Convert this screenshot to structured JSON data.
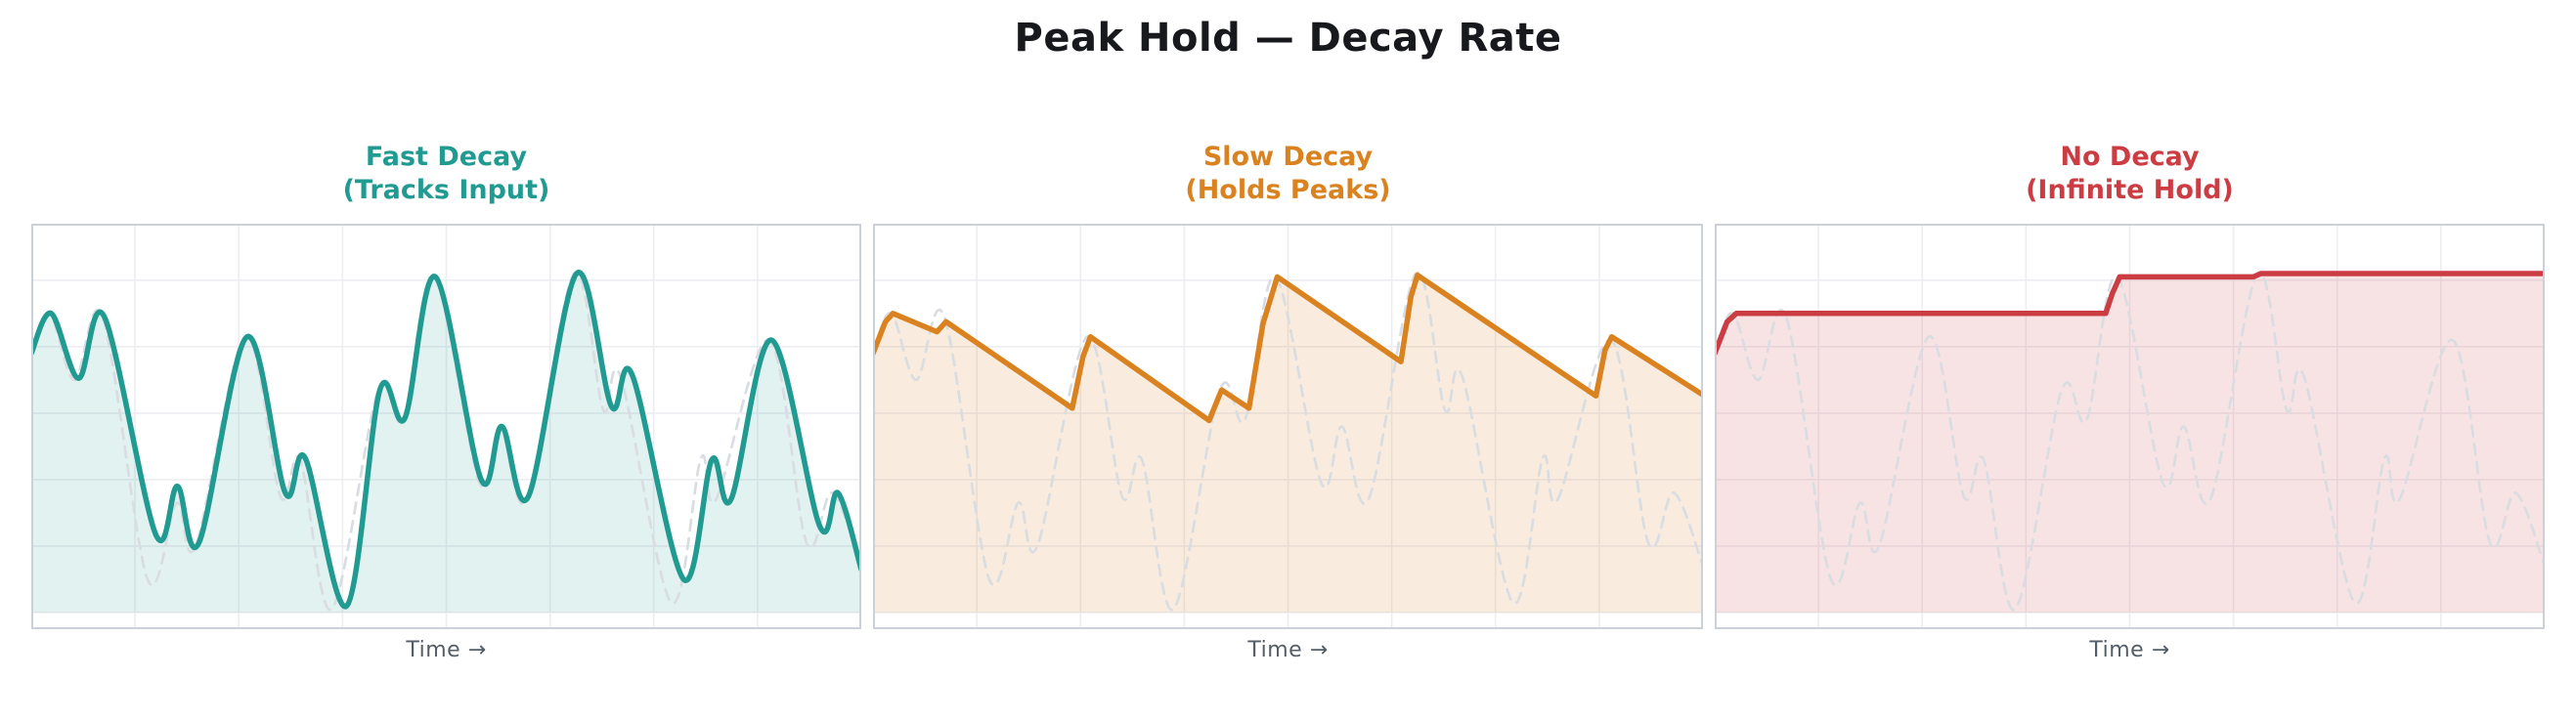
{
  "page_title": "Peak Hold — Decay Rate",
  "colors": {
    "title_text": "#17191d",
    "axis_label_text": "#545e68",
    "grid_line": "#ededf2",
    "plot_border": "#ccd1d8",
    "input_dashed_line": "#d9dde2",
    "background": "#ffffff"
  },
  "chart_data": {
    "type": "area",
    "xlim": [
      0,
      100
    ],
    "ylim": [
      -0.05,
      1.17
    ],
    "grid": {
      "on": true,
      "x_ticks": [
        12.5,
        25,
        37.5,
        50,
        62.5,
        75,
        87.5
      ],
      "y_ticks": [
        0,
        0.2,
        0.4,
        0.6,
        0.8,
        1.0
      ]
    },
    "input_series": {
      "name": "raw-input-signal",
      "style": "smooth",
      "dashed": true,
      "color": "#d9dde2",
      "points": [
        [
          0,
          0.78
        ],
        [
          2.2,
          0.9
        ],
        [
          5.2,
          0.7
        ],
        [
          8.6,
          0.89
        ],
        [
          14,
          0.1
        ],
        [
          17.5,
          0.33
        ],
        [
          19.8,
          0.2
        ],
        [
          25.8,
          0.83
        ],
        [
          30,
          0.35
        ],
        [
          32.4,
          0.46
        ],
        [
          36.2,
          0.01
        ],
        [
          41.8,
          0.67
        ],
        [
          44.8,
          0.58
        ],
        [
          48.5,
          1.01
        ],
        [
          54,
          0.39
        ],
        [
          56.5,
          0.56
        ],
        [
          59.7,
          0.34
        ],
        [
          65.4,
          1.02
        ],
        [
          68.9,
          0.61
        ],
        [
          71,
          0.71
        ],
        [
          77.1,
          0.03
        ],
        [
          80.7,
          0.465
        ],
        [
          82.5,
          0.34
        ],
        [
          88.9,
          0.82
        ],
        [
          93.4,
          0.21
        ],
        [
          96.5,
          0.36
        ],
        [
          100,
          0.14
        ]
      ]
    },
    "panels": [
      {
        "title_line1": "Fast Decay",
        "title_line2": "(Tracks Input)",
        "xlabel": "Time →",
        "series_name": "fast-decay-peak-hold",
        "color": "#219b92",
        "fill": "rgba(33,155,146,0.13)",
        "line_style": "smooth",
        "points": [
          [
            0,
            0.78
          ],
          [
            2.4,
            0.9
          ],
          [
            5.7,
            0.705
          ],
          [
            8.8,
            0.89
          ],
          [
            15,
            0.235
          ],
          [
            17.6,
            0.38
          ],
          [
            20.2,
            0.21
          ],
          [
            26,
            0.83
          ],
          [
            30.6,
            0.36
          ],
          [
            33,
            0.465
          ],
          [
            38,
            0.02
          ],
          [
            42,
            0.67
          ],
          [
            45,
            0.585
          ],
          [
            48.7,
            1.01
          ],
          [
            54.2,
            0.4
          ],
          [
            56.7,
            0.56
          ],
          [
            59.9,
            0.35
          ],
          [
            65.7,
            1.02
          ],
          [
            69.9,
            0.62
          ],
          [
            72.4,
            0.715
          ],
          [
            78.6,
            0.1
          ],
          [
            82,
            0.46
          ],
          [
            84.3,
            0.34
          ],
          [
            89.2,
            0.82
          ],
          [
            95,
            0.26
          ],
          [
            97.2,
            0.36
          ],
          [
            100,
            0.13
          ]
        ]
      },
      {
        "title_line1": "Slow Decay",
        "title_line2": "(Holds Peaks)",
        "xlabel": "Time →",
        "series_name": "slow-decay-peak-hold",
        "color": "#d9821f",
        "fill": "rgba(217,130,31,0.15)",
        "line_style": "linear",
        "points": [
          [
            0,
            0.78
          ],
          [
            1.5,
            0.875
          ],
          [
            2.4,
            0.9
          ],
          [
            7.7,
            0.845
          ],
          [
            8.8,
            0.875
          ],
          [
            24,
            0.615
          ],
          [
            25.3,
            0.77
          ],
          [
            26.2,
            0.83
          ],
          [
            40.5,
            0.578
          ],
          [
            42,
            0.67
          ],
          [
            45.3,
            0.615
          ],
          [
            47,
            0.87
          ],
          [
            48.7,
            1.01
          ],
          [
            63.6,
            0.755
          ],
          [
            64.8,
            0.95
          ],
          [
            65.6,
            1.015
          ],
          [
            87.1,
            0.652
          ],
          [
            88.2,
            0.79
          ],
          [
            89,
            0.83
          ],
          [
            100,
            0.655
          ]
        ]
      },
      {
        "title_line1": "No Decay",
        "title_line2": "(Infinite Hold)",
        "xlabel": "Time →",
        "series_name": "no-decay-peak-hold",
        "color": "#cb3c43",
        "fill": "rgba(203,60,67,0.14)",
        "line_style": "linear",
        "points": [
          [
            0,
            0.78
          ],
          [
            1.5,
            0.875
          ],
          [
            2.6,
            0.9
          ],
          [
            47.1,
            0.9
          ],
          [
            47.9,
            0.96
          ],
          [
            48.8,
            1.01
          ],
          [
            64.9,
            1.01
          ],
          [
            65.8,
            1.02
          ],
          [
            100,
            1.02
          ]
        ]
      }
    ]
  }
}
